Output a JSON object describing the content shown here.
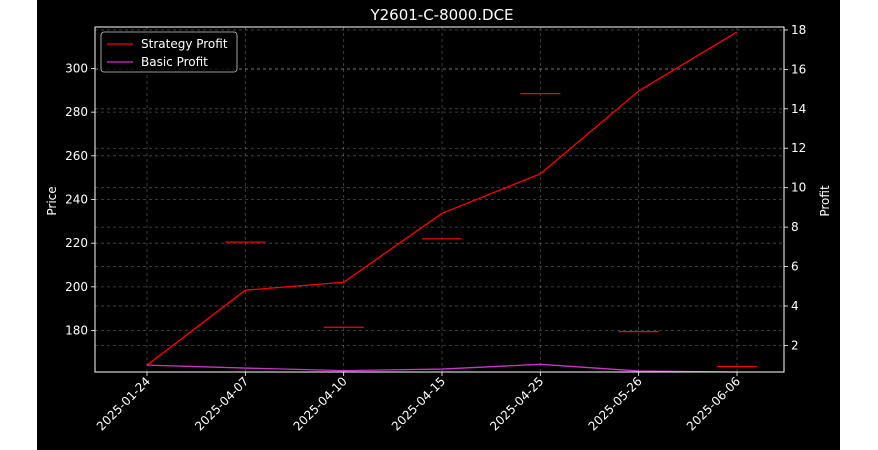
{
  "chart_data": {
    "type": "line",
    "title": "Y2601-C-8000.DCE",
    "xlabel": "",
    "ylabel_left": "Price",
    "ylabel_right": "Profit",
    "categories": [
      "2025-01-24",
      "2025-04-07",
      "2025-04-10",
      "2025-04-15",
      "2025-04-25",
      "2025-05-26",
      "2025-06-06"
    ],
    "price_series": {
      "axis": "left",
      "color": "#ff0000",
      "values": [
        null,
        220.5,
        181.5,
        222,
        288.5,
        179.5,
        163.5
      ]
    },
    "series": [
      {
        "name": "Strategy Profit",
        "axis": "right",
        "color": "#ff0000",
        "values": [
          1.0,
          4.8,
          5.2,
          8.7,
          10.7,
          14.9,
          17.9
        ]
      },
      {
        "name": "Basic Profit",
        "axis": "right",
        "color": "#cc33cc",
        "values": [
          1.0,
          0.85,
          0.72,
          0.8,
          1.04,
          0.7,
          0.65
        ]
      }
    ],
    "y_left": {
      "lim": [
        161,
        319
      ],
      "ticks": [
        180,
        200,
        220,
        240,
        260,
        280,
        300
      ]
    },
    "y_right": {
      "lim": [
        0.65,
        18.15
      ],
      "ticks": [
        2,
        4,
        6,
        8,
        10,
        12,
        14,
        16,
        18
      ]
    },
    "grid": true,
    "legend_position": "top-left"
  }
}
